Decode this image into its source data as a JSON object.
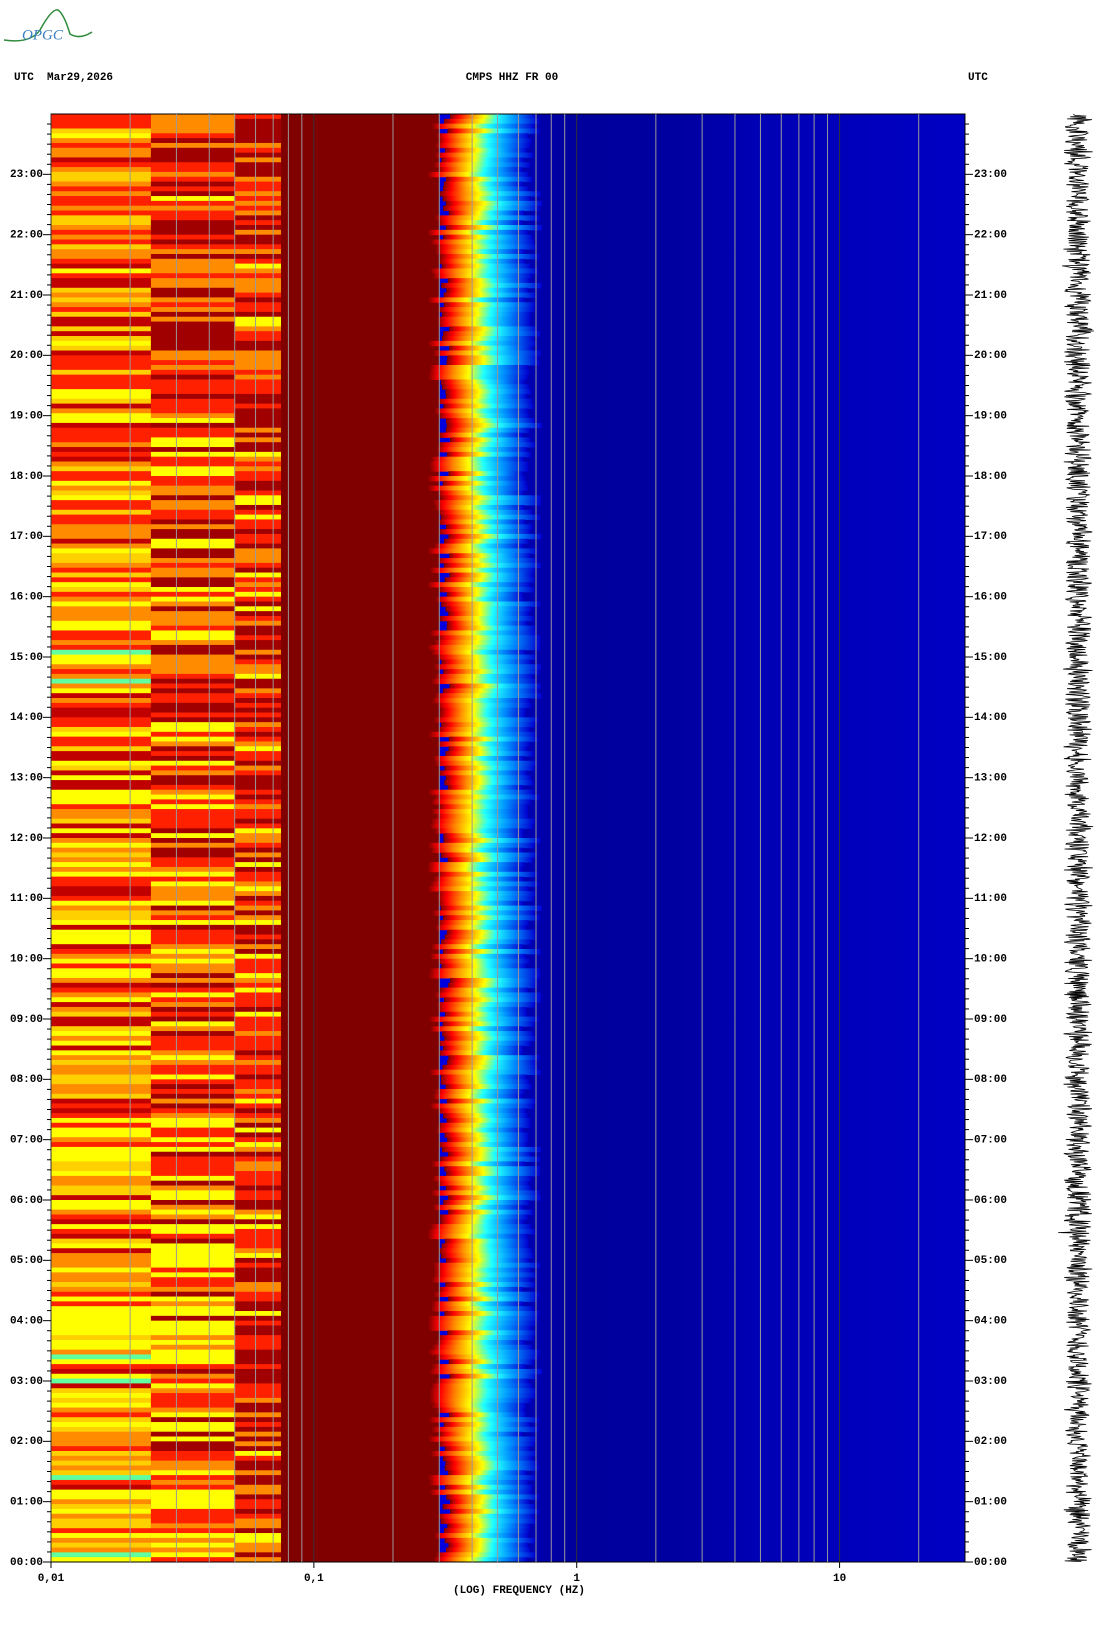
{
  "chart_data": {
    "type": "spectrogram",
    "logo": "OPGC",
    "date_label": "UTC  Mar29,2026",
    "title": "CMPS HHZ FR 00",
    "right_label": "UTC",
    "xlabel": "(LOG) FREQUENCY (HZ)",
    "xscale": "log",
    "xlim": [
      0.01,
      30
    ],
    "xticks": [
      {
        "value": 0.01,
        "label": "0,01"
      },
      {
        "value": 0.1,
        "label": "0,1"
      },
      1,
      10
    ],
    "ylim": [
      0,
      24
    ],
    "yticks": [
      {
        "value": 0,
        "label": "00:00"
      },
      {
        "value": 1,
        "label": "01:00"
      },
      {
        "value": 2,
        "label": "02:00"
      },
      {
        "value": 3,
        "label": "03:00"
      },
      {
        "value": 4,
        "label": "04:00"
      },
      {
        "value": 5,
        "label": "05:00"
      },
      {
        "value": 6,
        "label": "06:00"
      },
      {
        "value": 7,
        "label": "07:00"
      },
      {
        "value": 8,
        "label": "08:00"
      },
      {
        "value": 9,
        "label": "09:00"
      },
      {
        "value": 10,
        "label": "10:00"
      },
      {
        "value": 11,
        "label": "11:00"
      },
      {
        "value": 12,
        "label": "12:00"
      },
      {
        "value": 13,
        "label": "13:00"
      },
      {
        "value": 14,
        "label": "14:00"
      },
      {
        "value": 15,
        "label": "15:00"
      },
      {
        "value": 16,
        "label": "16:00"
      },
      {
        "value": 17,
        "label": "17:00"
      },
      {
        "value": 18,
        "label": "18:00"
      },
      {
        "value": 19,
        "label": "19:00"
      },
      {
        "value": 20,
        "label": "20:00"
      },
      {
        "value": 21,
        "label": "21:00"
      },
      {
        "value": 22,
        "label": "22:00"
      },
      {
        "value": 23,
        "label": "23:00"
      }
    ],
    "grid": true
  }
}
